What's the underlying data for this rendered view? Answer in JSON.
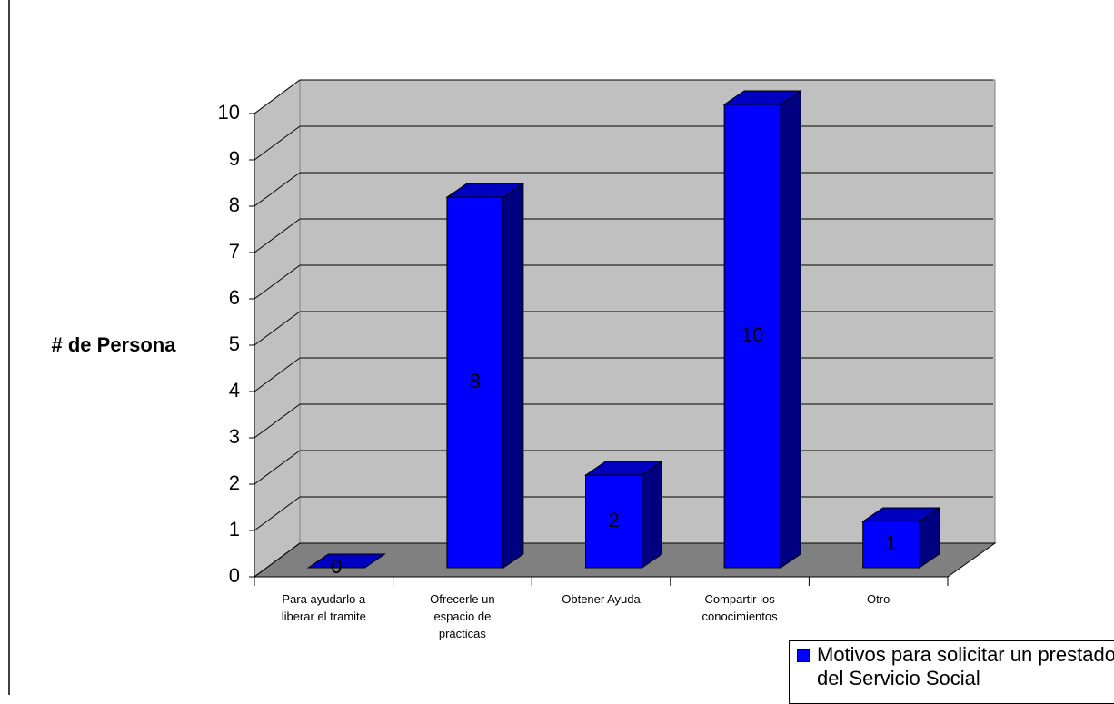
{
  "chart_data": {
    "type": "bar",
    "ylabel": "# de Persona",
    "categories": [
      "Para ayudarlo a liberar el tramite",
      "Ofrecerle un espacio de prácticas",
      "Obtener Ayuda",
      "Compartir los conocimientos",
      "Otro"
    ],
    "series": [
      {
        "name": "Motivos para solicitar un prestador del Servicio Social",
        "color": "#0000ff",
        "values": [
          0,
          8,
          2,
          10,
          1
        ]
      }
    ],
    "ylim": [
      0,
      10
    ],
    "yticks": [
      0,
      1,
      2,
      3,
      4,
      5,
      6,
      7,
      8,
      9,
      10
    ],
    "grid": true
  }
}
